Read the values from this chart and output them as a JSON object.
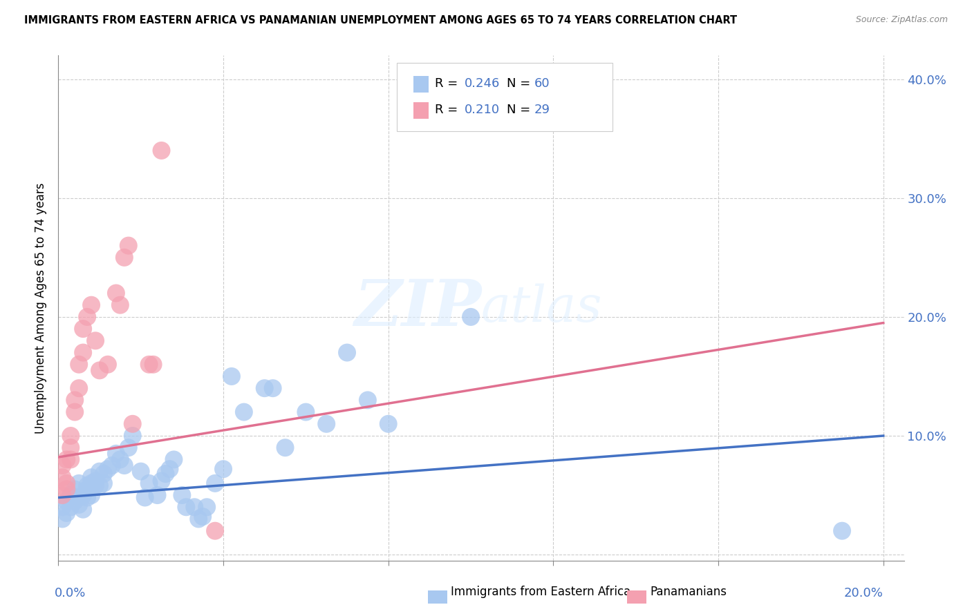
{
  "title": "IMMIGRANTS FROM EASTERN AFRICA VS PANAMANIAN UNEMPLOYMENT AMONG AGES 65 TO 74 YEARS CORRELATION CHART",
  "source": "Source: ZipAtlas.com",
  "ylabel": "Unemployment Among Ages 65 to 74 years",
  "right_yticks": [
    "",
    "10.0%",
    "20.0%",
    "30.0%",
    "40.0%"
  ],
  "right_ytick_vals": [
    0.0,
    0.1,
    0.2,
    0.3,
    0.4
  ],
  "legend_label_blue": "Immigrants from Eastern Africa",
  "legend_label_pink": "Panamanians",
  "blue_color": "#A8C8F0",
  "pink_color": "#F4A0B0",
  "blue_line_color": "#4472C4",
  "pink_line_color": "#E07090",
  "watermark": "ZIPatlas",
  "blue_scatter_x": [
    0.001,
    0.001,
    0.002,
    0.002,
    0.003,
    0.003,
    0.004,
    0.004,
    0.005,
    0.005,
    0.005,
    0.006,
    0.006,
    0.007,
    0.007,
    0.007,
    0.008,
    0.008,
    0.008,
    0.009,
    0.009,
    0.01,
    0.01,
    0.011,
    0.011,
    0.012,
    0.013,
    0.014,
    0.015,
    0.016,
    0.017,
    0.018,
    0.02,
    0.021,
    0.022,
    0.024,
    0.025,
    0.026,
    0.027,
    0.028,
    0.03,
    0.031,
    0.033,
    0.034,
    0.035,
    0.036,
    0.038,
    0.04,
    0.042,
    0.045,
    0.05,
    0.052,
    0.055,
    0.06,
    0.065,
    0.07,
    0.075,
    0.08,
    0.1,
    0.19
  ],
  "blue_scatter_y": [
    0.04,
    0.03,
    0.045,
    0.035,
    0.05,
    0.04,
    0.055,
    0.045,
    0.048,
    0.042,
    0.06,
    0.05,
    0.038,
    0.055,
    0.048,
    0.058,
    0.065,
    0.06,
    0.05,
    0.062,
    0.058,
    0.07,
    0.058,
    0.068,
    0.06,
    0.072,
    0.075,
    0.085,
    0.08,
    0.075,
    0.09,
    0.1,
    0.07,
    0.048,
    0.06,
    0.05,
    0.062,
    0.068,
    0.072,
    0.08,
    0.05,
    0.04,
    0.04,
    0.03,
    0.032,
    0.04,
    0.06,
    0.072,
    0.15,
    0.12,
    0.14,
    0.14,
    0.09,
    0.12,
    0.11,
    0.17,
    0.13,
    0.11,
    0.2,
    0.02
  ],
  "pink_scatter_x": [
    0.001,
    0.001,
    0.001,
    0.002,
    0.002,
    0.002,
    0.003,
    0.003,
    0.003,
    0.004,
    0.004,
    0.005,
    0.005,
    0.006,
    0.006,
    0.007,
    0.008,
    0.009,
    0.01,
    0.012,
    0.014,
    0.015,
    0.016,
    0.017,
    0.018,
    0.022,
    0.023,
    0.025,
    0.038
  ],
  "pink_scatter_y": [
    0.05,
    0.065,
    0.075,
    0.055,
    0.08,
    0.06,
    0.08,
    0.1,
    0.09,
    0.12,
    0.13,
    0.14,
    0.16,
    0.17,
    0.19,
    0.2,
    0.21,
    0.18,
    0.155,
    0.16,
    0.22,
    0.21,
    0.25,
    0.26,
    0.11,
    0.16,
    0.16,
    0.34,
    0.02
  ],
  "blue_line_x": [
    0.0,
    0.2
  ],
  "blue_line_y": [
    0.048,
    0.1
  ],
  "pink_line_x": [
    0.0,
    0.2
  ],
  "pink_line_y": [
    0.082,
    0.195
  ],
  "xlim": [
    0.0,
    0.205
  ],
  "ylim": [
    -0.005,
    0.42
  ],
  "xtick_positions": [
    0.0,
    0.04,
    0.08,
    0.12,
    0.16,
    0.2
  ],
  "ytick_positions": [
    0.0,
    0.1,
    0.2,
    0.3,
    0.4
  ]
}
